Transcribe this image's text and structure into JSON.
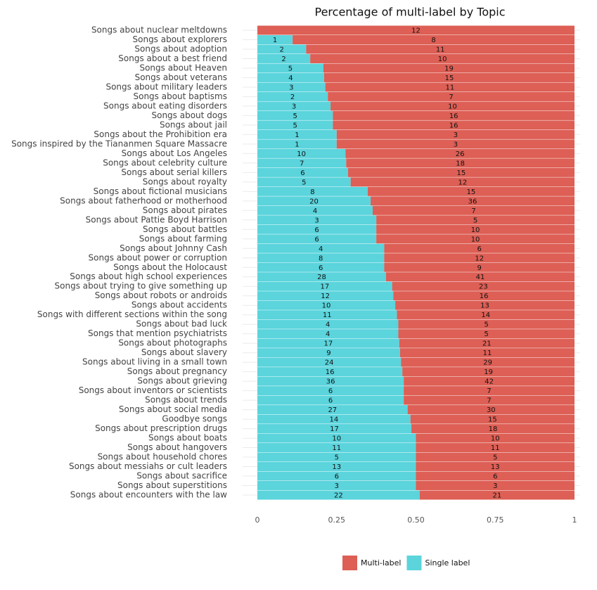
{
  "chart_data": {
    "type": "bar",
    "orientation": "horizontal",
    "stacked": "percent",
    "title": "Percentage of multi-label by Topic",
    "categories": [
      "Songs about nuclear meltdowns",
      "Songs about explorers",
      "Songs about adoption",
      "Songs about a best friend",
      "Songs about Heaven",
      "Songs about veterans",
      "Songs about military leaders",
      "Songs about baptisms",
      "Songs about eating disorders",
      "Songs about dogs",
      "Songs about jail",
      "Songs about the Prohibition era",
      "Songs inspired by the Tiananmen Square Massacre",
      "Songs about Los Angeles",
      "Songs about celebrity culture",
      "Songs about serial killers",
      "Songs about royalty",
      "Songs about fictional musicians",
      "Songs about fatherhood or motherhood",
      "Songs about pirates",
      "Songs about Pattie Boyd Harrison",
      "Songs about battles",
      "Songs about farming",
      "Songs about Johnny Cash",
      "Songs about power or corruption",
      "Songs about the Holocaust",
      "Songs about high school experiences",
      "Songs about trying to give something up",
      "Songs about robots or androids",
      "Songs about accidents",
      "Songs with different sections within the song",
      "Songs about bad luck",
      "Songs that mention psychiatrists",
      "Songs about photographs",
      "Songs about slavery",
      "Songs about living in a small town",
      "Songs about pregnancy",
      "Songs about grieving",
      "Songs about inventors or scientists",
      "Songs about trends",
      "Songs about social media",
      "Goodbye songs",
      "Songs about prescription drugs",
      "Songs about boats",
      "Songs about hangovers",
      "Songs about household chores",
      "Songs about messiahs or cult leaders",
      "Songs about sacrifice",
      "Songs about superstitions",
      "Songs about encounters with the law"
    ],
    "series": [
      {
        "name": "Multi-label",
        "color": "#dd5f55",
        "values": [
          12,
          8,
          11,
          10,
          19,
          15,
          11,
          7,
          10,
          16,
          16,
          3,
          3,
          26,
          18,
          15,
          12,
          15,
          36,
          7,
          5,
          10,
          10,
          6,
          12,
          9,
          41,
          23,
          16,
          13,
          14,
          5,
          5,
          21,
          11,
          29,
          19,
          42,
          7,
          7,
          30,
          15,
          18,
          10,
          11,
          5,
          13,
          6,
          3,
          21
        ]
      },
      {
        "name": "Single label",
        "color": "#5bd4dc",
        "values": [
          0,
          1,
          2,
          2,
          5,
          4,
          3,
          2,
          3,
          5,
          5,
          1,
          1,
          10,
          7,
          6,
          5,
          8,
          20,
          4,
          3,
          6,
          6,
          4,
          8,
          6,
          28,
          17,
          12,
          10,
          11,
          4,
          4,
          17,
          9,
          24,
          16,
          36,
          6,
          6,
          27,
          14,
          17,
          10,
          11,
          5,
          13,
          6,
          3,
          22
        ]
      }
    ],
    "xlim": [
      0,
      1
    ],
    "xticks": [
      0,
      0.25,
      {
        "value": 0.5,
        "label": "0.50"
      },
      0.75,
      1
    ],
    "legend": "bottom"
  }
}
